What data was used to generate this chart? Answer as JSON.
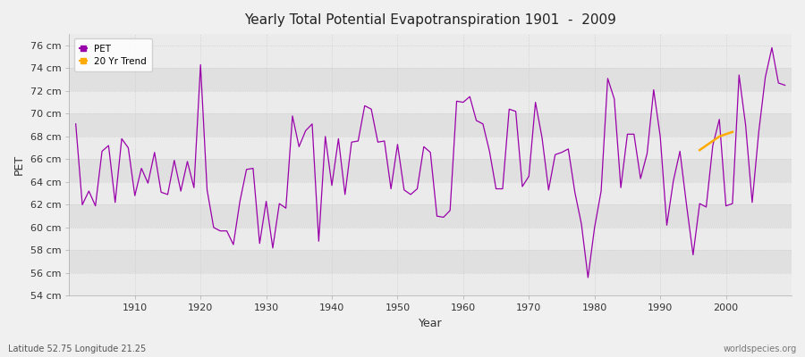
{
  "title": "Yearly Total Potential Evapotranspiration 1901  -  2009",
  "xlabel": "Year",
  "ylabel": "PET",
  "footnote_left": "Latitude 52.75 Longitude 21.25",
  "footnote_right": "worldspecies.org",
  "ylim": [
    54,
    77
  ],
  "yticks": [
    54,
    56,
    58,
    60,
    62,
    64,
    66,
    68,
    70,
    72,
    74,
    76
  ],
  "xlim": [
    1900,
    2010
  ],
  "pet_color": "#9900aa",
  "trend_color": "#ffaa00",
  "bg_color": "#f0f0f0",
  "plot_bg_light": "#ebebeb",
  "plot_bg_dark": "#e0e0e0",
  "grid_color": "#cccccc",
  "pet_data": {
    "1901": 69.1,
    "1902": 62.0,
    "1903": 63.2,
    "1904": 61.9,
    "1905": 66.7,
    "1906": 67.2,
    "1907": 62.2,
    "1908": 67.8,
    "1909": 67.0,
    "1910": 62.8,
    "1911": 65.2,
    "1912": 63.9,
    "1913": 66.6,
    "1914": 63.1,
    "1915": 62.9,
    "1916": 65.9,
    "1917": 63.2,
    "1918": 65.8,
    "1919": 63.5,
    "1920": 74.3,
    "1921": 63.3,
    "1922": 60.0,
    "1923": 59.7,
    "1924": 59.7,
    "1925": 58.5,
    "1926": 62.3,
    "1927": 65.1,
    "1928": 65.2,
    "1929": 58.6,
    "1930": 62.3,
    "1931": 58.2,
    "1932": 62.1,
    "1933": 61.7,
    "1934": 69.8,
    "1935": 67.1,
    "1936": 68.5,
    "1937": 69.1,
    "1938": 58.8,
    "1939": 68.0,
    "1940": 63.7,
    "1941": 67.8,
    "1942": 62.9,
    "1943": 67.5,
    "1944": 67.6,
    "1945": 70.7,
    "1946": 70.4,
    "1947": 67.5,
    "1948": 67.6,
    "1949": 63.4,
    "1950": 67.3,
    "1951": 63.3,
    "1952": 62.9,
    "1953": 63.4,
    "1954": 67.1,
    "1955": 66.6,
    "1956": 61.0,
    "1957": 60.9,
    "1958": 61.5,
    "1959": 71.1,
    "1960": 71.0,
    "1961": 71.5,
    "1962": 69.4,
    "1963": 69.1,
    "1964": 66.7,
    "1965": 63.4,
    "1966": 63.4,
    "1967": 70.4,
    "1968": 70.2,
    "1969": 63.6,
    "1970": 64.5,
    "1971": 71.0,
    "1972": 67.9,
    "1973": 63.3,
    "1974": 66.4,
    "1975": 66.6,
    "1976": 66.9,
    "1977": 63.1,
    "1978": 60.3,
    "1979": 55.6,
    "1980": 60.0,
    "1981": 63.2,
    "1982": 73.1,
    "1983": 71.3,
    "1984": 63.5,
    "1985": 68.2,
    "1986": 68.2,
    "1987": 64.3,
    "1988": 66.5,
    "1989": 72.1,
    "1990": 68.0,
    "1991": 60.2,
    "1992": 64.1,
    "1993": 66.7,
    "1994": 62.0,
    "1995": 57.6,
    "1996": 62.1,
    "1997": 61.8,
    "1998": 67.2,
    "1999": 69.5,
    "2000": 61.9,
    "2001": 62.1,
    "2002": 73.4,
    "2003": 69.0,
    "2004": 62.2,
    "2005": 68.4,
    "2006": 73.2,
    "2007": 75.8,
    "2008": 72.7,
    "2009": 72.5
  },
  "trend_data": {
    "1996": 66.8,
    "1997": 67.2,
    "1998": 67.6,
    "1999": 68.0,
    "2000": 68.2,
    "2001": 68.4
  },
  "legend_pet_label": "PET",
  "legend_trend_label": "20 Yr Trend"
}
